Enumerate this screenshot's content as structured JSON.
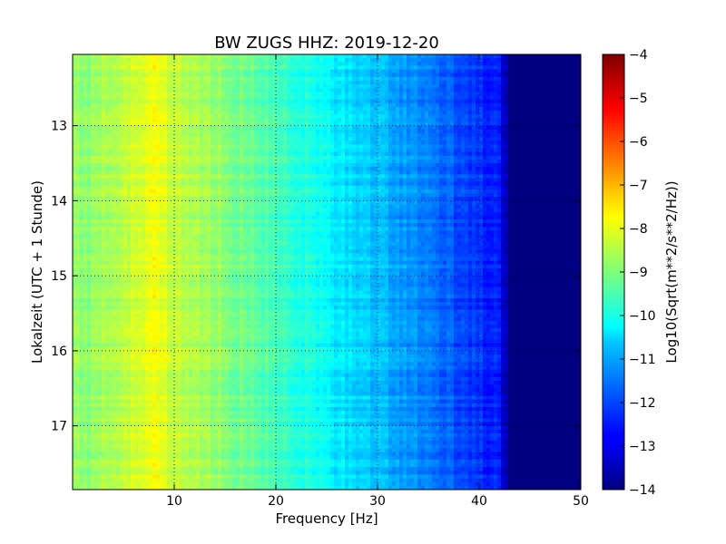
{
  "chart_data": {
    "type": "heatmap",
    "title": "BW ZUGS HHZ: 2019-12-20",
    "xlabel": "Frequency [Hz]",
    "ylabel": "Lokalzeit (UTC + 1 Stunde)",
    "colorbar_label": "Log10(Sqrt(m**2/s**2/Hz))",
    "colormap": "jet",
    "x_range": [
      0,
      50
    ],
    "y_range": [
      12.05,
      17.85
    ],
    "y_inverted": true,
    "x_ticks": [
      10,
      20,
      30,
      40,
      50
    ],
    "y_ticks": [
      13,
      14,
      15,
      16,
      17
    ],
    "color_range": [
      -14,
      -4
    ],
    "colorbar_ticks": [
      -4,
      -5,
      -6,
      -7,
      -8,
      -9,
      -10,
      -11,
      -12,
      -13,
      -14
    ],
    "grid": true,
    "profile_frequency": [
      0,
      1,
      5,
      8,
      10,
      12,
      15,
      20,
      23,
      25,
      28,
      30,
      33,
      35,
      38,
      40,
      42,
      43,
      50
    ],
    "profile_log_amplitude": [
      -8.8,
      -8.9,
      -8.5,
      -7.9,
      -8.3,
      -8.6,
      -8.9,
      -9.6,
      -10.0,
      -10.3,
      -10.7,
      -10.9,
      -11.3,
      -11.6,
      -12.0,
      -12.3,
      -12.6,
      -14.0,
      -14.0
    ]
  },
  "colors": {
    "axes_frame": "#000000",
    "grid": "#000000",
    "background": "#ffffff"
  }
}
